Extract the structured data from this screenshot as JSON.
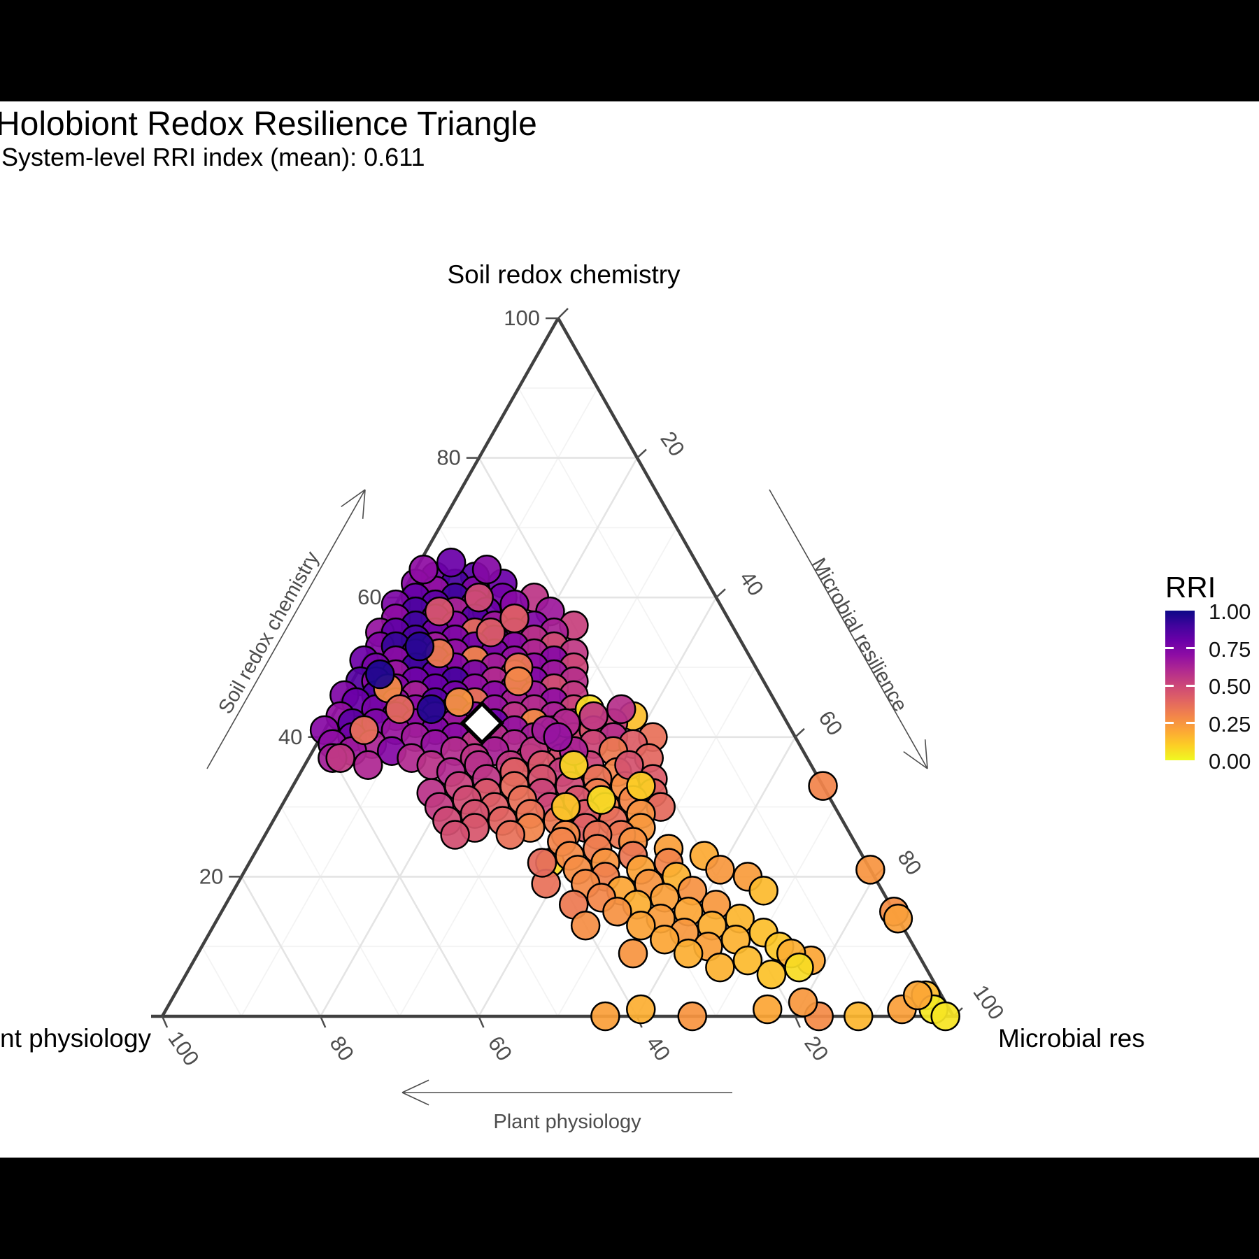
{
  "page": {
    "background": "#000000",
    "panel_background": "#ffffff"
  },
  "header": {
    "title": "Holobiont Redox Resilience Triangle",
    "subtitle": "System-level RRI index (mean): 0.611"
  },
  "chart_data": {
    "type": "scatter",
    "subtype": "ternary",
    "title": "Holobiont Redox Resilience Triangle",
    "subtitle": "System-level RRI index (mean): 0.611",
    "axes": {
      "top_vertex_label": "Soil redox chemistry",
      "bottom_left_vertex_label": "nt physiology",
      "bottom_right_vertex_label": "Microbial res",
      "left_axis_arrow_label": "Soil redox chemistry",
      "right_axis_arrow_label": "Microbial resilience",
      "bottom_axis_arrow_label": "Plant physiology",
      "left_ticks": [
        100,
        80,
        60,
        40,
        20
      ],
      "right_ticks": [
        20,
        40,
        60,
        80,
        100
      ],
      "bottom_ticks": [
        100,
        80,
        60,
        40,
        20
      ],
      "grid_major": [
        20,
        40,
        60,
        80
      ],
      "grid_minor": [
        10,
        30,
        50,
        70,
        90
      ],
      "range": [
        0,
        100
      ]
    },
    "legend": {
      "title": "RRI",
      "labels": [
        "1.00",
        "0.75",
        "0.50",
        "0.25",
        "0.00"
      ],
      "values": [
        1.0,
        0.75,
        0.5,
        0.25,
        0.0
      ],
      "gradient_top_to_bottom": [
        "#0d0887",
        "#41049d",
        "#6a00a8",
        "#8f0da4",
        "#b12a90",
        "#cc4778",
        "#e16462",
        "#f2844b",
        "#fca636",
        "#fcce25",
        "#f0f921"
      ]
    },
    "color_scale": {
      "name": "plasma-reversed",
      "note": "point color = plasma(1 - RRI)",
      "plasma_stops": [
        "#0d0887",
        "#41049d",
        "#6a00a8",
        "#8f0da4",
        "#b12a90",
        "#cc4778",
        "#e16462",
        "#f2844b",
        "#fca636",
        "#fcce25",
        "#f0f921"
      ]
    },
    "style": {
      "point_radius": 20,
      "point_stroke": "#000000",
      "edge_color": "#404040",
      "grid_major_color": "#e4e4e4",
      "grid_minor_color": "#f3f3f3",
      "tick_color": "#4d4d4d",
      "tick_label_color": "#4d4d4d"
    },
    "mean_point": {
      "soil": 42.0,
      "plant": 38.6,
      "microbe": 19.4,
      "rri": 0.611,
      "marker": "white-diamond"
    },
    "points_format": [
      "soil_redox_chemistry",
      "microbial_resilience",
      "rri"
    ],
    "points": [
      [
        63,
        3,
        0.78
      ],
      [
        63,
        8,
        0.85
      ],
      [
        62,
        1,
        0.72
      ],
      [
        62,
        6,
        0.88
      ],
      [
        62,
        12,
        0.8
      ],
      [
        61,
        4,
        0.69
      ],
      [
        61,
        9,
        0.74
      ],
      [
        60,
        2,
        0.81
      ],
      [
        60,
        7,
        0.9
      ],
      [
        60,
        13,
        0.77
      ],
      [
        60,
        17,
        0.56
      ],
      [
        59,
        0,
        0.75
      ],
      [
        59,
        5,
        0.83
      ],
      [
        59,
        10,
        0.68
      ],
      [
        59,
        15,
        0.72
      ],
      [
        58,
        3,
        0.87
      ],
      [
        58,
        8,
        0.62
      ],
      [
        58,
        12,
        0.79
      ],
      [
        58,
        20,
        0.66
      ],
      [
        57,
        1,
        0.7
      ],
      [
        57,
        6,
        0.76
      ],
      [
        57,
        11,
        0.85
      ],
      [
        57,
        16,
        0.58
      ],
      [
        56,
        4,
        0.9
      ],
      [
        56,
        9,
        0.72
      ],
      [
        56,
        14,
        0.66
      ],
      [
        56,
        19,
        0.74
      ],
      [
        56,
        24,
        0.52
      ],
      [
        55,
        0,
        0.68
      ],
      [
        55,
        2,
        0.82
      ],
      [
        55,
        7,
        0.77
      ],
      [
        55,
        12,
        0.37
      ],
      [
        55,
        17,
        0.7
      ],
      [
        55,
        22,
        0.63
      ],
      [
        54,
        5,
        0.88
      ],
      [
        54,
        10,
        0.74
      ],
      [
        54,
        15,
        0.8
      ],
      [
        54,
        20,
        0.57
      ],
      [
        53,
        1,
        0.73
      ],
      [
        53,
        3,
        0.92
      ],
      [
        53,
        8,
        0.65
      ],
      [
        53,
        13,
        0.78
      ],
      [
        53,
        18,
        0.71
      ],
      [
        53,
        23,
        0.48
      ],
      [
        52,
        6,
        0.84
      ],
      [
        52,
        11,
        0.69
      ],
      [
        52,
        16,
        0.75
      ],
      [
        52,
        21,
        0.61
      ],
      [
        52,
        26,
        0.55
      ],
      [
        51,
        0,
        0.79
      ],
      [
        51,
        4,
        0.71
      ],
      [
        51,
        9,
        0.86
      ],
      [
        51,
        14,
        0.3
      ],
      [
        51,
        19,
        0.68
      ],
      [
        51,
        24,
        0.72
      ],
      [
        50,
        2,
        0.76
      ],
      [
        50,
        7,
        0.9
      ],
      [
        50,
        12,
        0.73
      ],
      [
        50,
        17,
        0.64
      ],
      [
        50,
        22,
        0.7
      ],
      [
        50,
        27,
        0.5
      ],
      [
        49,
        5,
        0.67
      ],
      [
        49,
        10,
        0.81
      ],
      [
        49,
        15,
        0.76
      ],
      [
        49,
        20,
        0.44
      ],
      [
        49,
        25,
        0.66
      ],
      [
        48,
        1,
        0.85
      ],
      [
        48,
        3,
        0.7
      ],
      [
        48,
        8,
        0.78
      ],
      [
        48,
        13,
        0.88
      ],
      [
        48,
        18,
        0.6
      ],
      [
        48,
        23,
        0.73
      ],
      [
        48,
        28,
        0.58
      ],
      [
        47,
        6,
        0.72
      ],
      [
        47,
        11,
        0.8
      ],
      [
        47,
        16,
        0.69
      ],
      [
        47,
        21,
        0.75
      ],
      [
        47,
        26,
        0.47
      ],
      [
        46,
        0,
        0.74
      ],
      [
        46,
        4,
        0.87
      ],
      [
        46,
        9,
        0.63
      ],
      [
        46,
        14,
        0.77
      ],
      [
        46,
        19,
        0.71
      ],
      [
        46,
        24,
        0.65
      ],
      [
        46,
        29,
        0.54
      ],
      [
        45,
        2,
        0.8
      ],
      [
        45,
        7,
        0.68
      ],
      [
        45,
        12,
        0.84
      ],
      [
        45,
        17,
        0.35
      ],
      [
        45,
        22,
        0.62
      ],
      [
        45,
        27,
        0.69
      ],
      [
        44,
        5,
        0.76
      ],
      [
        44,
        10,
        0.71
      ],
      [
        44,
        15,
        0.82
      ],
      [
        44,
        20,
        0.67
      ],
      [
        44,
        25,
        0.59
      ],
      [
        44,
        30,
        0.51
      ],
      [
        43,
        1,
        0.69
      ],
      [
        43,
        8,
        0.78
      ],
      [
        43,
        13,
        0.64
      ],
      [
        43,
        18,
        0.73
      ],
      [
        43,
        23,
        0.56
      ],
      [
        43,
        28,
        0.62
      ],
      [
        42,
        3,
        0.83
      ],
      [
        42,
        6,
        0.75
      ],
      [
        42,
        11,
        0.7
      ],
      [
        42,
        16,
        0.66
      ],
      [
        42,
        21,
        0.79
      ],
      [
        42,
        26,
        0.28
      ],
      [
        42,
        31,
        0.57
      ],
      [
        41,
        0,
        0.72
      ],
      [
        41,
        9,
        0.67
      ],
      [
        41,
        14,
        0.74
      ],
      [
        41,
        19,
        0.61
      ],
      [
        41,
        24,
        0.68
      ],
      [
        41,
        29,
        0.53
      ],
      [
        40,
        4,
        0.78
      ],
      [
        40,
        12,
        0.65
      ],
      [
        40,
        17,
        0.71
      ],
      [
        40,
        22,
        0.58
      ],
      [
        40,
        27,
        0.64
      ],
      [
        40,
        32,
        0.49
      ],
      [
        39,
        2,
        0.7
      ],
      [
        39,
        7,
        0.62
      ],
      [
        39,
        15,
        0.68
      ],
      [
        39,
        20,
        0.55
      ],
      [
        39,
        25,
        0.6
      ],
      [
        39,
        30,
        0.45
      ],
      [
        38,
        5,
        0.66
      ],
      [
        38,
        10,
        0.73
      ],
      [
        38,
        18,
        0.59
      ],
      [
        38,
        23,
        0.63
      ],
      [
        38,
        33,
        0.52
      ],
      [
        37,
        3,
        0.64
      ],
      [
        37,
        13,
        0.6
      ],
      [
        37,
        21,
        0.56
      ],
      [
        37,
        28,
        0.48
      ],
      [
        36,
        8,
        0.61
      ],
      [
        36,
        16,
        0.57
      ],
      [
        36,
        26,
        0.54
      ],
      [
        52,
        9,
        0.32
      ],
      [
        47,
        5,
        0.27
      ],
      [
        55,
        14,
        0.42
      ],
      [
        44,
        8,
        0.38
      ],
      [
        58,
        6,
        0.45
      ],
      [
        50,
        20,
        0.33
      ],
      [
        45,
        15,
        0.25
      ],
      [
        60,
        10,
        0.48
      ],
      [
        41,
        5,
        0.36
      ],
      [
        48,
        21,
        0.29
      ],
      [
        65,
        4,
        0.8
      ],
      [
        64,
        9,
        0.73
      ],
      [
        64,
        1,
        0.7
      ],
      [
        49,
        3,
        0.97
      ],
      [
        44,
        12,
        0.96
      ],
      [
        53,
        6,
        0.95
      ],
      [
        37,
        4,
        0.55
      ],
      [
        44,
        32,
        0.06
      ],
      [
        43,
        38,
        0.14
      ],
      [
        57,
        16,
        0.42
      ],
      [
        42,
        36,
        0.52
      ],
      [
        41,
        34,
        0.45
      ],
      [
        40,
        37,
        0.58
      ],
      [
        40,
        42,
        0.36
      ],
      [
        39,
        35,
        0.5
      ],
      [
        39,
        40,
        0.42
      ],
      [
        38,
        28,
        0.55
      ],
      [
        38,
        38,
        0.33
      ],
      [
        37,
        32,
        0.47
      ],
      [
        37,
        43,
        0.39
      ],
      [
        36,
        22,
        0.58
      ],
      [
        36,
        30,
        0.44
      ],
      [
        36,
        36,
        0.51
      ],
      [
        35,
        19,
        0.6
      ],
      [
        35,
        27,
        0.41
      ],
      [
        35,
        33,
        0.53
      ],
      [
        35,
        40,
        0.3
      ],
      [
        34,
        24,
        0.56
      ],
      [
        34,
        31,
        0.46
      ],
      [
        34,
        38,
        0.35
      ],
      [
        34,
        45,
        0.43
      ],
      [
        33,
        21,
        0.52
      ],
      [
        33,
        28,
        0.38
      ],
      [
        33,
        35,
        0.49
      ],
      [
        33,
        42,
        0.27
      ],
      [
        32,
        18,
        0.57
      ],
      [
        32,
        25,
        0.44
      ],
      [
        32,
        32,
        0.51
      ],
      [
        32,
        39,
        0.32
      ],
      [
        32,
        46,
        0.4
      ],
      [
        31,
        23,
        0.48
      ],
      [
        31,
        30,
        0.36
      ],
      [
        31,
        37,
        0.45
      ],
      [
        31,
        44,
        0.29
      ],
      [
        30,
        20,
        0.54
      ],
      [
        30,
        27,
        0.42
      ],
      [
        30,
        34,
        0.5
      ],
      [
        30,
        41,
        0.31
      ],
      [
        30,
        48,
        0.38
      ],
      [
        29,
        25,
        0.46
      ],
      [
        29,
        32,
        0.35
      ],
      [
        29,
        39,
        0.43
      ],
      [
        29,
        46,
        0.26
      ],
      [
        28,
        22,
        0.49
      ],
      [
        28,
        29,
        0.4
      ],
      [
        28,
        36,
        0.33
      ],
      [
        28,
        43,
        0.37
      ],
      [
        27,
        26,
        0.45
      ],
      [
        27,
        33,
        0.3
      ],
      [
        27,
        40,
        0.41
      ],
      [
        27,
        47,
        0.24
      ],
      [
        26,
        24,
        0.47
      ],
      [
        26,
        31,
        0.36
      ],
      [
        26,
        38,
        0.28
      ],
      [
        26,
        45,
        0.34
      ],
      [
        42,
        30,
        0.6
      ],
      [
        41,
        28,
        0.64
      ],
      [
        43,
        33,
        0.55
      ],
      [
        38,
        33,
        0.62
      ],
      [
        36,
        41,
        0.46
      ],
      [
        40,
        30,
        0.68
      ],
      [
        44,
        36,
        0.58
      ],
      [
        36,
        34,
        0.08
      ],
      [
        30,
        36,
        0.12
      ],
      [
        33,
        44,
        0.1
      ],
      [
        22,
        38,
        0.08
      ],
      [
        31,
        40,
        0.07
      ],
      [
        26,
        42,
        0.35
      ],
      [
        25,
        38,
        0.3
      ],
      [
        25,
        47,
        0.26
      ],
      [
        24,
        43,
        0.32
      ],
      [
        24,
        52,
        0.22
      ],
      [
        23,
        40,
        0.28
      ],
      [
        23,
        48,
        0.34
      ],
      [
        23,
        57,
        0.19
      ],
      [
        22,
        45,
        0.25
      ],
      [
        22,
        53,
        0.3
      ],
      [
        21,
        42,
        0.27
      ],
      [
        21,
        50,
        0.21
      ],
      [
        21,
        60,
        0.24
      ],
      [
        20,
        46,
        0.31
      ],
      [
        20,
        55,
        0.17
      ],
      [
        20,
        64,
        0.23
      ],
      [
        19,
        44,
        0.28
      ],
      [
        19,
        52,
        0.25
      ],
      [
        18,
        49,
        0.2
      ],
      [
        18,
        58,
        0.26
      ],
      [
        18,
        67,
        0.15
      ],
      [
        17,
        47,
        0.29
      ],
      [
        17,
        55,
        0.22
      ],
      [
        16,
        52,
        0.18
      ],
      [
        16,
        62,
        0.24
      ],
      [
        15,
        50,
        0.26
      ],
      [
        15,
        59,
        0.2
      ],
      [
        14,
        56,
        0.23
      ],
      [
        14,
        66,
        0.16
      ],
      [
        13,
        54,
        0.21
      ],
      [
        13,
        63,
        0.18
      ],
      [
        12,
        60,
        0.24
      ],
      [
        12,
        70,
        0.14
      ],
      [
        11,
        58,
        0.2
      ],
      [
        11,
        67,
        0.17
      ],
      [
        10,
        64,
        0.22
      ],
      [
        10,
        73,
        0.12
      ],
      [
        9,
        62,
        0.18
      ],
      [
        8,
        70,
        0.15
      ],
      [
        8,
        78,
        0.2
      ],
      [
        7,
        67,
        0.17
      ],
      [
        6,
        74,
        0.13
      ],
      [
        16,
        44,
        0.33
      ],
      [
        19,
        39,
        0.36
      ],
      [
        22,
        37,
        0.38
      ],
      [
        13,
        47,
        0.27
      ],
      [
        9,
        55,
        0.25
      ],
      [
        33,
        67,
        0.3
      ],
      [
        15,
        85,
        0.27
      ],
      [
        14,
        86,
        0.22
      ],
      [
        21,
        79,
        0.25
      ],
      [
        9,
        75,
        0.18
      ],
      [
        7,
        77,
        0.07
      ],
      [
        0,
        56,
        0.22
      ],
      [
        1,
        60,
        0.18
      ],
      [
        0,
        67,
        0.25
      ],
      [
        1,
        76,
        0.2
      ],
      [
        0,
        83,
        0.28
      ],
      [
        2,
        80,
        0.24
      ],
      [
        0,
        88,
        0.16
      ],
      [
        1,
        93,
        0.22
      ],
      [
        3,
        95,
        0.15
      ],
      [
        1,
        97,
        0.04
      ],
      [
        0,
        99,
        0.05
      ],
      [
        3,
        94,
        0.2
      ]
    ]
  }
}
